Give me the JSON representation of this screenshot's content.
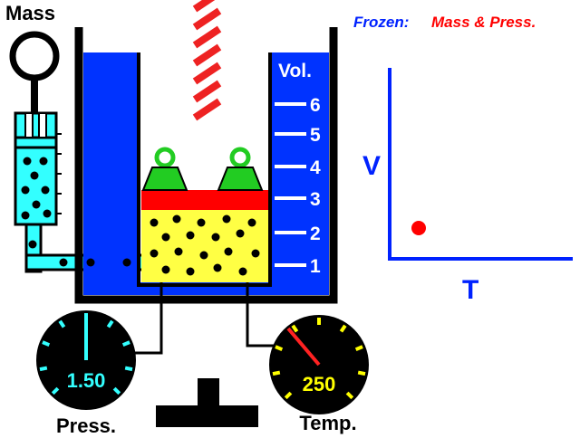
{
  "labels": {
    "mass": "Mass",
    "frozen": "Frozen:",
    "frozen_items": "Mass  & Press.",
    "volume": "Vol.",
    "pressure": "Press.",
    "temperature": "Temp."
  },
  "volume_scale": [
    "6",
    "5",
    "4",
    "3",
    "2",
    "1"
  ],
  "graph": {
    "y_axis": "V",
    "x_axis": "T"
  },
  "gauges": {
    "pressure": "1.50",
    "temperature": "250"
  }
}
